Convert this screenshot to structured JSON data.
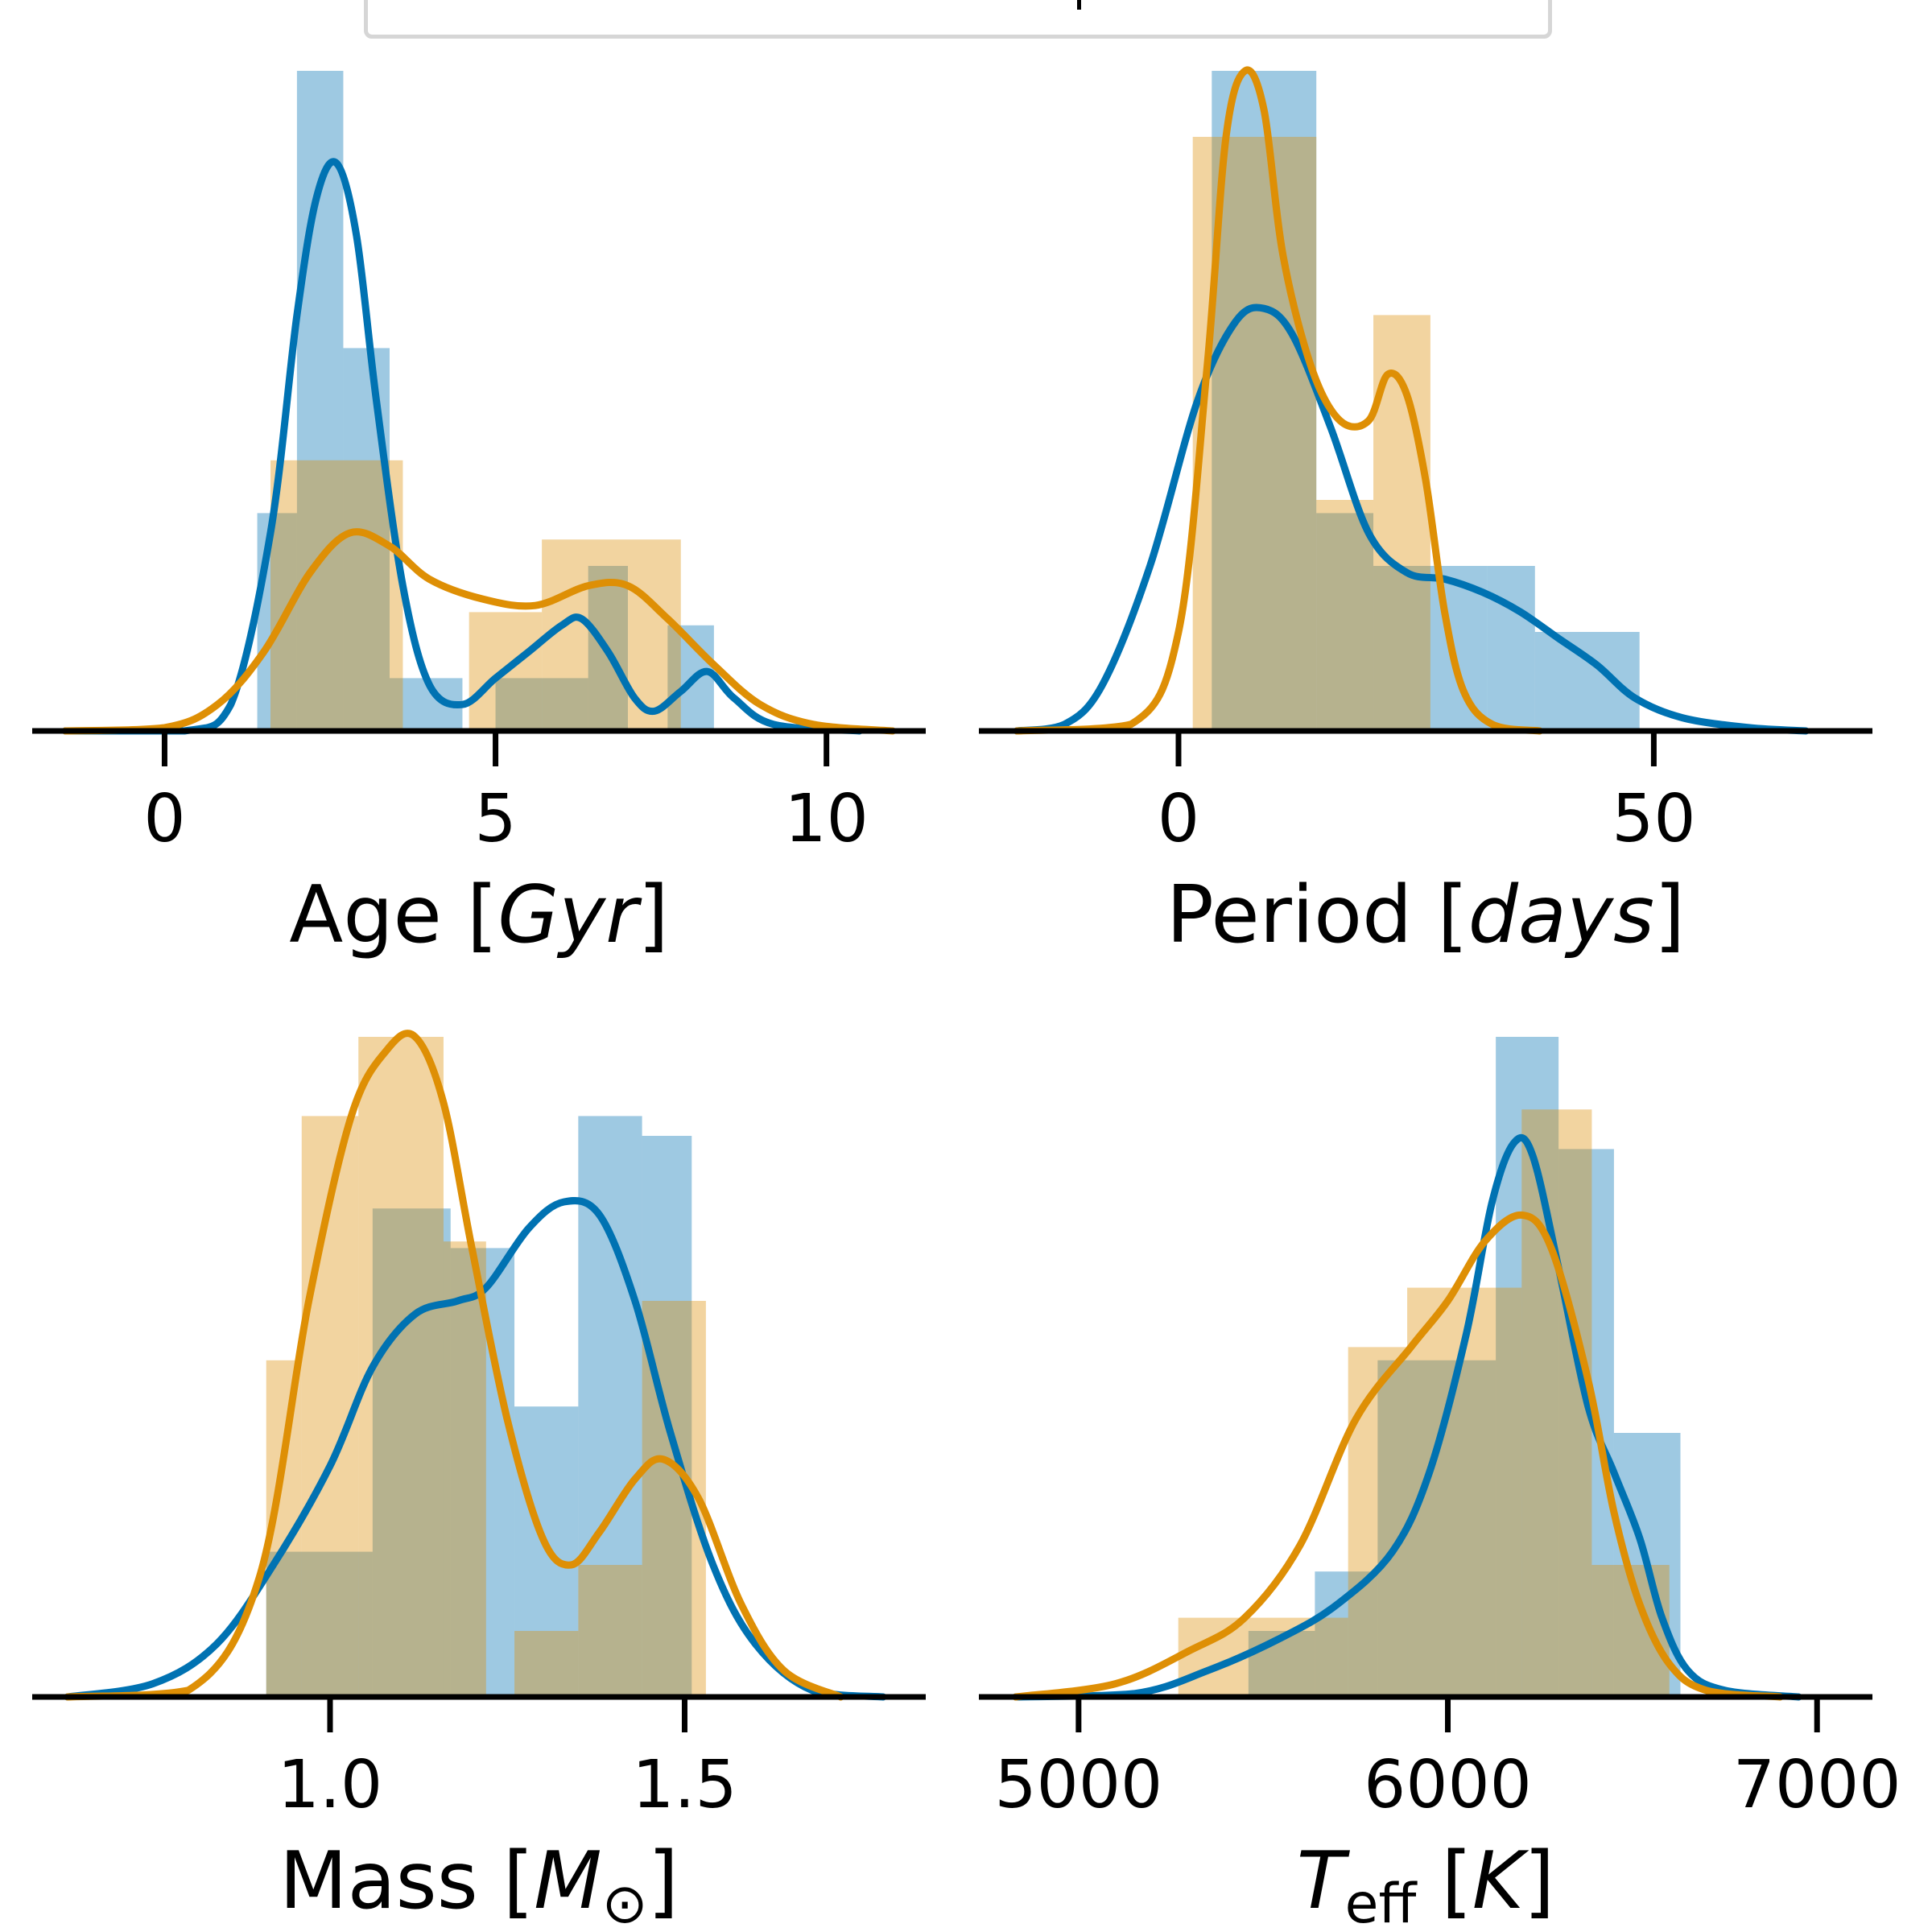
{
  "colors": {
    "blue": "#0072b2",
    "orange": "#de8f05"
  },
  "chart_data": [
    {
      "type": "histogram+kde",
      "xlabel": {
        "pre": "Age [",
        "it": "Gyr",
        "post": "]"
      },
      "xlim": [
        -2,
        11.5
      ],
      "ticks": [
        0,
        5,
        10
      ],
      "tick_labels": [
        "0",
        "5",
        "10"
      ],
      "ymax": 1.0,
      "series": [
        {
          "color": "blue",
          "bins": [
            [
              1.4,
              2.0,
              0.33
            ],
            [
              2.0,
              2.7,
              1.0
            ],
            [
              2.7,
              3.4,
              0.58
            ],
            [
              3.4,
              4.5,
              0.08
            ],
            [
              4.5,
              5.0,
              0.0
            ],
            [
              5.0,
              6.4,
              0.08
            ],
            [
              6.4,
              7.0,
              0.25
            ],
            [
              7.0,
              7.6,
              0.0
            ],
            [
              7.6,
              8.3,
              0.16
            ]
          ],
          "kde": [
            [
              -1.5,
              0
            ],
            [
              0.3,
              0
            ],
            [
              1.0,
              0.04
            ],
            [
              1.6,
              0.3
            ],
            [
              2.0,
              0.63
            ],
            [
              2.3,
              0.81
            ],
            [
              2.6,
              0.86
            ],
            [
              2.9,
              0.75
            ],
            [
              3.2,
              0.5
            ],
            [
              3.6,
              0.22
            ],
            [
              4.0,
              0.07
            ],
            [
              4.5,
              0.04
            ],
            [
              5.0,
              0.08
            ],
            [
              5.5,
              0.12
            ],
            [
              6.0,
              0.16
            ],
            [
              6.3,
              0.17
            ],
            [
              6.7,
              0.12
            ],
            [
              7.1,
              0.05
            ],
            [
              7.4,
              0.03
            ],
            [
              7.8,
              0.06
            ],
            [
              8.2,
              0.09
            ],
            [
              8.6,
              0.05
            ],
            [
              9.2,
              0.01
            ],
            [
              10.5,
              0
            ]
          ]
        },
        {
          "color": "orange",
          "bins": [
            [
              1.6,
              3.6,
              0.41
            ],
            [
              3.6,
              4.6,
              0.0
            ],
            [
              4.6,
              5.7,
              0.18
            ],
            [
              5.7,
              7.8,
              0.29
            ]
          ],
          "kde": [
            [
              -1.5,
              0
            ],
            [
              0.0,
              0.005
            ],
            [
              0.8,
              0.04
            ],
            [
              1.5,
              0.12
            ],
            [
              2.2,
              0.24
            ],
            [
              2.8,
              0.3
            ],
            [
              3.4,
              0.28
            ],
            [
              4.0,
              0.23
            ],
            [
              4.8,
              0.2
            ],
            [
              5.6,
              0.19
            ],
            [
              6.4,
              0.22
            ],
            [
              7.0,
              0.22
            ],
            [
              7.6,
              0.17
            ],
            [
              8.3,
              0.1
            ],
            [
              9.0,
              0.04
            ],
            [
              9.8,
              0.01
            ],
            [
              11.0,
              0
            ]
          ]
        }
      ]
    },
    {
      "type": "histogram+kde",
      "xlabel": {
        "pre": "Period [",
        "it": "days",
        "post": "]"
      },
      "xlim": [
        -21,
        73
      ],
      "ticks": [
        0,
        50
      ],
      "tick_labels": [
        "0",
        "50"
      ],
      "ymax": 1.0,
      "series": [
        {
          "color": "blue",
          "bins": [
            [
              3.5,
              14.5,
              1.0
            ],
            [
              14.5,
              20.5,
              0.33
            ],
            [
              20.5,
              32.5,
              0.25
            ],
            [
              32.5,
              37.5,
              0.25
            ],
            [
              37.5,
              48.5,
              0.15
            ]
          ],
          "kde": [
            [
              -17,
              0
            ],
            [
              -12,
              0.01
            ],
            [
              -8,
              0.07
            ],
            [
              -3,
              0.25
            ],
            [
              2,
              0.5
            ],
            [
              6,
              0.62
            ],
            [
              9,
              0.64
            ],
            [
              12,
              0.6
            ],
            [
              16,
              0.46
            ],
            [
              20,
              0.3
            ],
            [
              24,
              0.24
            ],
            [
              28,
              0.23
            ],
            [
              32,
              0.21
            ],
            [
              36,
              0.18
            ],
            [
              40,
              0.14
            ],
            [
              44,
              0.1
            ],
            [
              48,
              0.05
            ],
            [
              53,
              0.02
            ],
            [
              60,
              0.005
            ],
            [
              66,
              0
            ]
          ]
        },
        {
          "color": "orange",
          "bins": [
            [
              1.5,
              14.5,
              0.9
            ],
            [
              14.5,
              20.5,
              0.35
            ],
            [
              20.5,
              26.5,
              0.63
            ],
            [
              26.5,
              27.5,
              0.0
            ]
          ],
          "kde": [
            [
              -17,
              0
            ],
            [
              -5,
              0.01
            ],
            [
              0,
              0.15
            ],
            [
              3,
              0.55
            ],
            [
              5,
              0.9
            ],
            [
              7,
              1.0
            ],
            [
              9,
              0.94
            ],
            [
              11,
              0.72
            ],
            [
              14,
              0.55
            ],
            [
              17,
              0.47
            ],
            [
              20,
              0.47
            ],
            [
              22,
              0.54
            ],
            [
              24,
              0.51
            ],
            [
              26,
              0.38
            ],
            [
              28,
              0.18
            ],
            [
              30,
              0.06
            ],
            [
              33,
              0.01
            ],
            [
              38,
              0
            ]
          ]
        }
      ]
    },
    {
      "type": "histogram+kde",
      "xlabel": {
        "pre": "Mass [",
        "it": "M",
        "sub": "⊙",
        "post": "]"
      },
      "xlim": [
        0.58,
        1.84
      ],
      "ticks": [
        1.0,
        1.5
      ],
      "tick_labels": [
        "1.0",
        "1.5"
      ],
      "ymax": 1.0,
      "series": [
        {
          "color": "blue",
          "bins": [
            [
              0.91,
              1.06,
              0.22
            ],
            [
              1.06,
              1.17,
              0.74
            ],
            [
              1.17,
              1.26,
              0.68
            ],
            [
              1.26,
              1.35,
              0.44
            ],
            [
              1.35,
              1.44,
              0.88
            ],
            [
              1.44,
              1.51,
              0.85
            ]
          ],
          "kde": [
            [
              0.63,
              0
            ],
            [
              0.75,
              0.02
            ],
            [
              0.84,
              0.08
            ],
            [
              0.92,
              0.2
            ],
            [
              1.0,
              0.35
            ],
            [
              1.06,
              0.5
            ],
            [
              1.12,
              0.58
            ],
            [
              1.18,
              0.6
            ],
            [
              1.22,
              0.62
            ],
            [
              1.28,
              0.71
            ],
            [
              1.33,
              0.75
            ],
            [
              1.38,
              0.73
            ],
            [
              1.43,
              0.6
            ],
            [
              1.48,
              0.4
            ],
            [
              1.54,
              0.2
            ],
            [
              1.6,
              0.08
            ],
            [
              1.68,
              0.01
            ],
            [
              1.78,
              0
            ]
          ]
        },
        {
          "color": "orange",
          "bins": [
            [
              0.91,
              0.96,
              0.51
            ],
            [
              0.96,
              1.04,
              0.88
            ],
            [
              1.04,
              1.16,
              1.0
            ],
            [
              1.16,
              1.22,
              0.69
            ],
            [
              1.22,
              1.26,
              0.0
            ],
            [
              1.26,
              1.35,
              0.1
            ],
            [
              1.35,
              1.44,
              0.2
            ],
            [
              1.44,
              1.53,
              0.6
            ]
          ],
          "kde": [
            [
              0.63,
              0
            ],
            [
              0.8,
              0.01
            ],
            [
              0.9,
              0.18
            ],
            [
              0.97,
              0.6
            ],
            [
              1.03,
              0.88
            ],
            [
              1.08,
              0.98
            ],
            [
              1.12,
              1.0
            ],
            [
              1.16,
              0.9
            ],
            [
              1.2,
              0.68
            ],
            [
              1.25,
              0.42
            ],
            [
              1.3,
              0.24
            ],
            [
              1.34,
              0.2
            ],
            [
              1.38,
              0.25
            ],
            [
              1.43,
              0.33
            ],
            [
              1.47,
              0.36
            ],
            [
              1.52,
              0.3
            ],
            [
              1.58,
              0.14
            ],
            [
              1.64,
              0.04
            ],
            [
              1.72,
              0
            ]
          ]
        }
      ]
    },
    {
      "type": "histogram+kde",
      "xlabel": {
        "pre": "",
        "it": "T",
        "sub": "eff",
        "post": " [",
        "it2": "K",
        "post2": "]"
      },
      "xlim": [
        4730,
        7150
      ],
      "ticks": [
        5000,
        6000,
        7000
      ],
      "tick_labels": [
        "5000",
        "6000",
        "7000"
      ],
      "ymax": 1.0,
      "series": [
        {
          "color": "blue",
          "bins": [
            [
              5460,
              5640,
              0.1
            ],
            [
              5640,
              5810,
              0.19
            ],
            [
              5810,
              6130,
              0.51
            ],
            [
              6130,
              6300,
              1.0
            ],
            [
              6300,
              6450,
              0.83
            ],
            [
              6450,
              6630,
              0.4
            ]
          ],
          "kde": [
            [
              4830,
              0
            ],
            [
              5150,
              0.005
            ],
            [
              5350,
              0.04
            ],
            [
              5550,
              0.09
            ],
            [
              5700,
              0.14
            ],
            [
              5850,
              0.22
            ],
            [
              5950,
              0.34
            ],
            [
              6050,
              0.55
            ],
            [
              6120,
              0.75
            ],
            [
              6180,
              0.84
            ],
            [
              6230,
              0.82
            ],
            [
              6300,
              0.65
            ],
            [
              6380,
              0.44
            ],
            [
              6450,
              0.34
            ],
            [
              6520,
              0.24
            ],
            [
              6580,
              0.12
            ],
            [
              6650,
              0.04
            ],
            [
              6750,
              0.01
            ],
            [
              6950,
              0
            ]
          ]
        },
        {
          "color": "orange",
          "bins": [
            [
              5270,
              5460,
              0.12
            ],
            [
              5460,
              5730,
              0.12
            ],
            [
              5730,
              5890,
              0.53
            ],
            [
              5890,
              6200,
              0.62
            ],
            [
              6200,
              6390,
              0.89
            ],
            [
              6390,
              6600,
              0.2
            ]
          ],
          "kde": [
            [
              4830,
              0
            ],
            [
              5100,
              0.02
            ],
            [
              5300,
              0.07
            ],
            [
              5450,
              0.12
            ],
            [
              5600,
              0.23
            ],
            [
              5750,
              0.42
            ],
            [
              5900,
              0.53
            ],
            [
              6000,
              0.6
            ],
            [
              6100,
              0.69
            ],
            [
              6200,
              0.73
            ],
            [
              6280,
              0.68
            ],
            [
              6380,
              0.48
            ],
            [
              6450,
              0.28
            ],
            [
              6520,
              0.14
            ],
            [
              6600,
              0.05
            ],
            [
              6700,
              0.01
            ],
            [
              6900,
              0
            ]
          ]
        }
      ]
    }
  ]
}
